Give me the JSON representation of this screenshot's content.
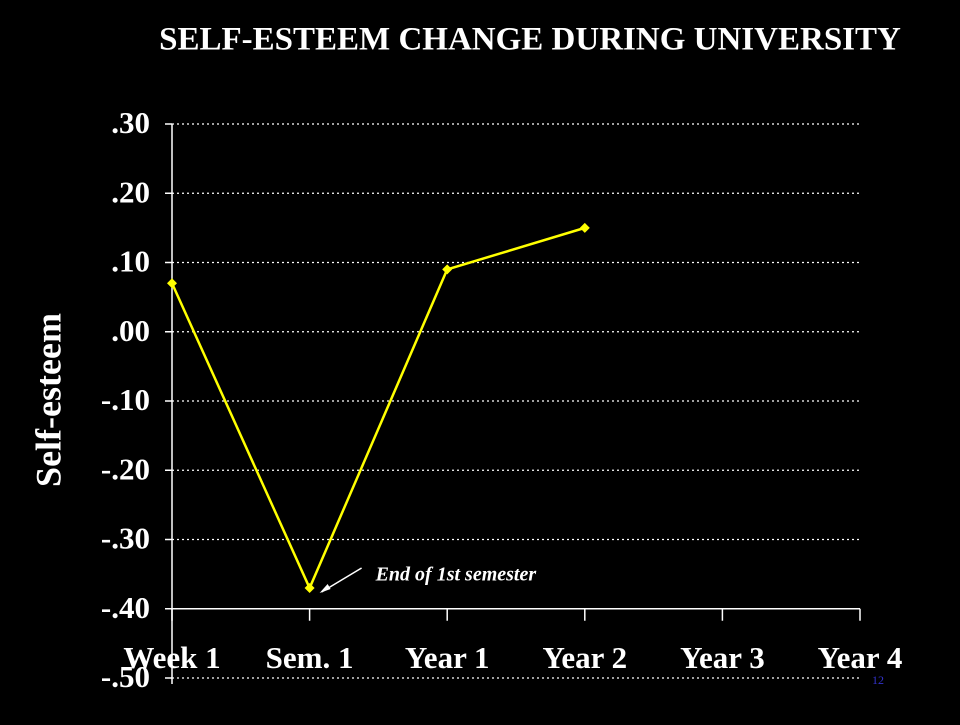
{
  "chart_data": {
    "type": "line",
    "title": "SELF-ESTEEM CHANGE DURING UNIVERSITY",
    "y_label": "Self-esteem",
    "categories": [
      "Week 1",
      "Sem. 1",
      "Year 1",
      "Year 2",
      "Year 3",
      "Year 4"
    ],
    "series": [
      {
        "name": "Self-esteem",
        "color": "#ffff00",
        "values": [
          0.07,
          -0.37,
          0.09,
          0.15,
          null,
          null
        ]
      }
    ],
    "ylim": [
      -0.5,
      0.3
    ],
    "yticks": [
      {
        "value": 0.3,
        "label": ".30"
      },
      {
        "value": 0.2,
        "label": ".20"
      },
      {
        "value": 0.1,
        "label": ".10"
      },
      {
        "value": 0,
        "label": ".00"
      },
      {
        "value": -0.1,
        "label": "-.10"
      },
      {
        "value": -0.2,
        "label": "-.20"
      },
      {
        "value": -0.3,
        "label": "-.30"
      },
      {
        "value": -0.4,
        "label": "-.40"
      },
      {
        "value": -0.5,
        "label": "-.50"
      }
    ],
    "x_axis_crosses": -0.4,
    "grid": true,
    "annotation": "End of 1st semester"
  },
  "slide_number": "12"
}
